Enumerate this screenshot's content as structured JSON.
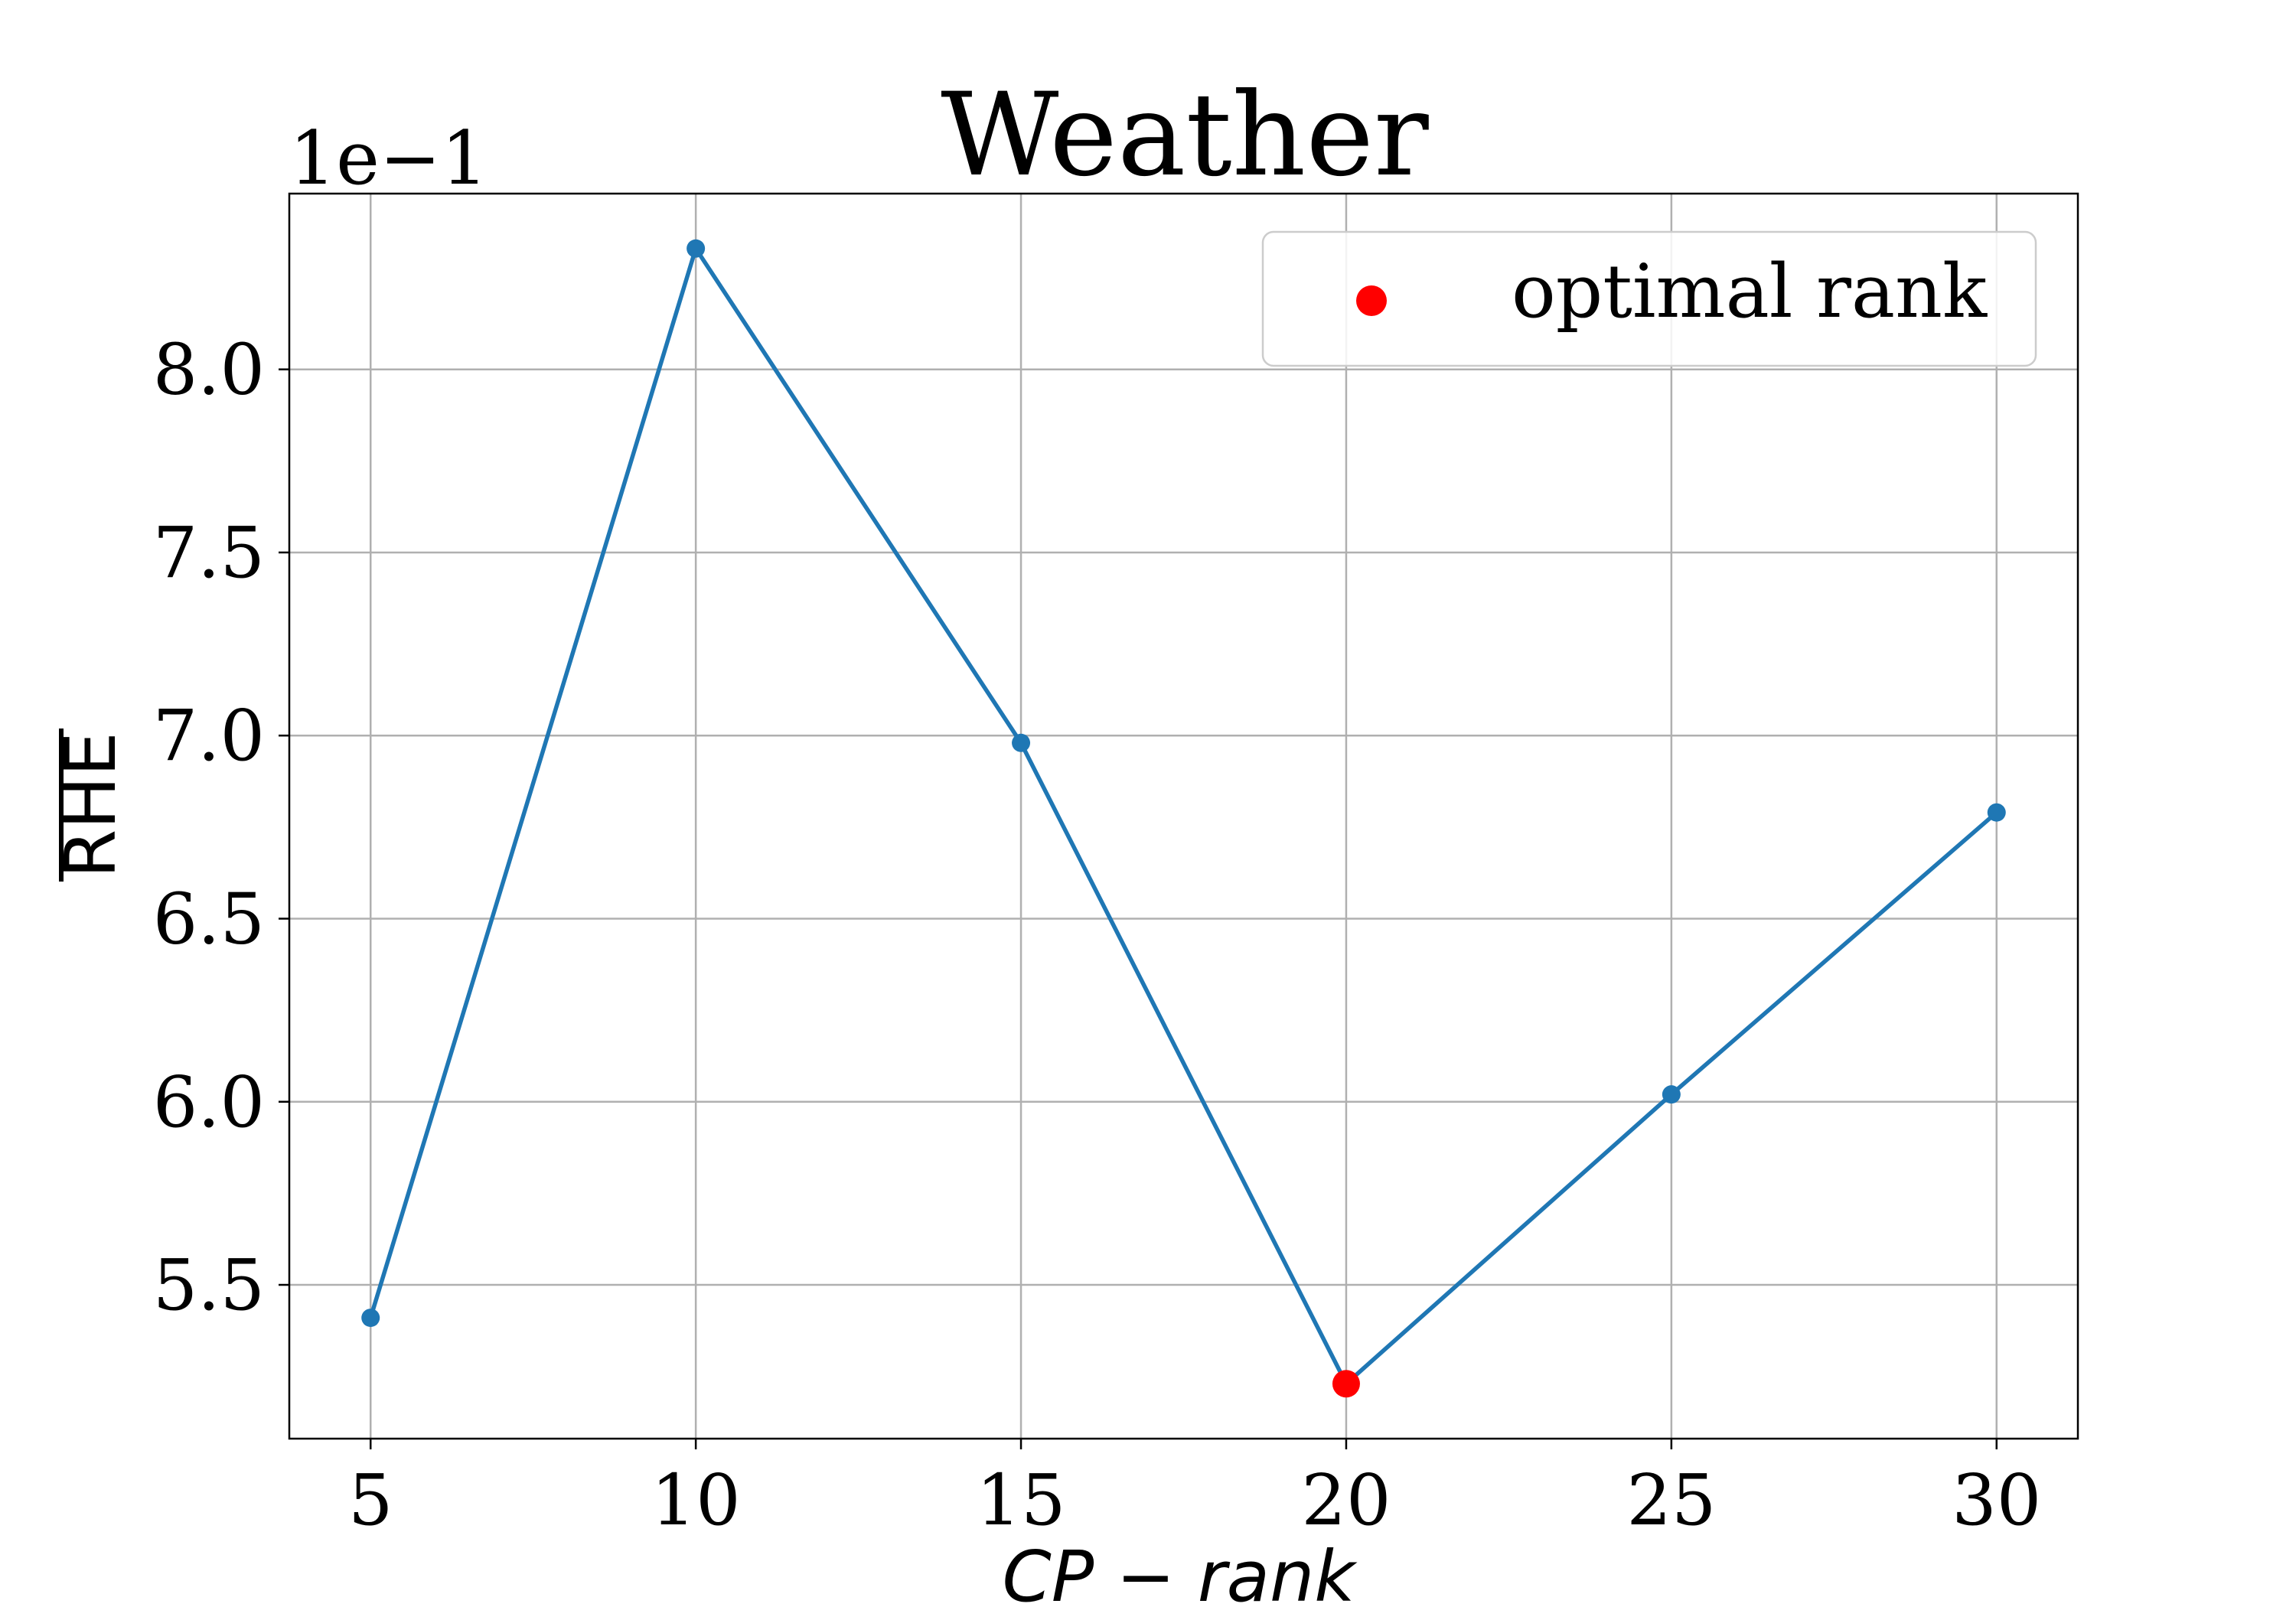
{
  "chart_data": {
    "type": "line",
    "title": "Weather",
    "xlabel": "CP − rank",
    "ylabel": "RHE",
    "offset_label": "1e−1",
    "x": [
      5,
      10,
      15,
      20,
      25,
      30
    ],
    "x_ticks": [
      "5",
      "10",
      "15",
      "20",
      "25",
      "30"
    ],
    "y_ticks": [
      "5.5",
      "6.0",
      "6.5",
      "7.0",
      "7.5",
      "8.0"
    ],
    "y_tick_values": [
      5.5,
      6.0,
      6.5,
      7.0,
      7.5,
      8.0
    ],
    "xlim": [
      3.75,
      31.25
    ],
    "ylim": [
      5.08,
      8.48
    ],
    "grid": true,
    "series": [
      {
        "values": [
          5.41,
          8.33,
          6.98,
          5.23,
          6.02,
          6.79
        ],
        "color": "#1f77b4"
      }
    ],
    "highlight": {
      "x": 20,
      "y": 5.23,
      "name": "optimal rank",
      "color": "#ff0000"
    },
    "legend": {
      "placement": "top-right",
      "entries": [
        "optimal rank"
      ]
    }
  }
}
